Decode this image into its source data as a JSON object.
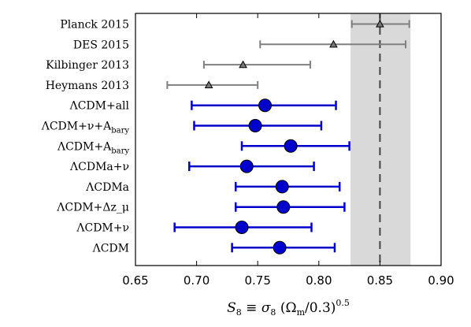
{
  "chart_data": {
    "type": "forest",
    "title": "",
    "xlabel": "S₈ ≡ σ₈ (Ωₘ/0.3)^0.5",
    "ylabel": "",
    "xlim": [
      0.65,
      0.9
    ],
    "xticks": [
      "0.65",
      "0.70",
      "0.75",
      "0.80",
      "0.85",
      "0.90"
    ],
    "grid": false,
    "band": {
      "x": [
        0.826,
        0.875
      ],
      "color": "#d9d9d9"
    },
    "reference_line": {
      "x": 0.85,
      "style": "dashed",
      "color": "#444444"
    },
    "external_series": {
      "color": "#808080",
      "marker": "triangle",
      "rows": [
        {
          "label": "Planck 2015",
          "value": 0.85,
          "lower": 0.827,
          "upper": 0.874
        },
        {
          "label": "DES 2015",
          "value": 0.812,
          "lower": 0.752,
          "upper": 0.871
        },
        {
          "label": "Kilbinger 2013",
          "value": 0.738,
          "lower": 0.706,
          "upper": 0.793
        },
        {
          "label": "Heymans 2013",
          "value": 0.71,
          "lower": 0.676,
          "upper": 0.75
        }
      ]
    },
    "model_series": {
      "color": "#0000cc",
      "marker": "circle",
      "rows": [
        {
          "label": "ΛCDM+all",
          "value": 0.756,
          "lower": 0.696,
          "upper": 0.814
        },
        {
          "label": "ΛCDM+ν+A_bary",
          "value": 0.748,
          "lower": 0.698,
          "upper": 0.802
        },
        {
          "label": "ΛCDM+A_bary",
          "value": 0.777,
          "lower": 0.737,
          "upper": 0.825
        },
        {
          "label": "ΛCDMa+ν",
          "value": 0.741,
          "lower": 0.694,
          "upper": 0.796
        },
        {
          "label": "ΛCDMa",
          "value": 0.77,
          "lower": 0.732,
          "upper": 0.817
        },
        {
          "label": "ΛCDM+Δz_μ",
          "value": 0.771,
          "lower": 0.732,
          "upper": 0.821
        },
        {
          "label": "ΛCDM+ν",
          "value": 0.737,
          "lower": 0.682,
          "upper": 0.794
        },
        {
          "label": "ΛCDM",
          "value": 0.768,
          "lower": 0.729,
          "upper": 0.813
        }
      ]
    }
  }
}
